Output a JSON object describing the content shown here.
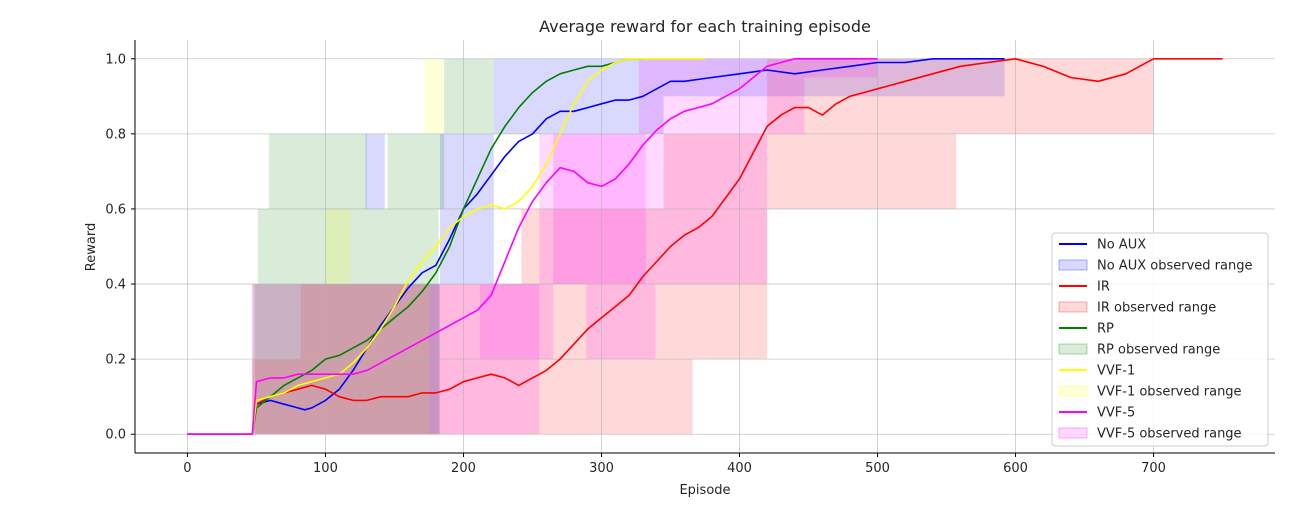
{
  "chart_data": {
    "type": "line",
    "title": "Average reward for each training episode",
    "xlabel": "Episode",
    "ylabel": "Reward",
    "xlim": [
      -38,
      788
    ],
    "ylim": [
      -0.05,
      1.05
    ],
    "xticks": [
      0,
      100,
      200,
      300,
      400,
      500,
      600,
      700
    ],
    "yticks": [
      0.0,
      0.2,
      0.4,
      0.6,
      0.8,
      1.0
    ],
    "xtick_labels": [
      "0",
      "100",
      "200",
      "300",
      "400",
      "500",
      "600",
      "700"
    ],
    "ytick_labels": [
      "0.0",
      "0.2",
      "0.4",
      "0.6",
      "0.8",
      "1.0"
    ],
    "grid": true,
    "legend_position": "lower-right",
    "series": [
      {
        "name": "No AUX",
        "range_name": "No AUX observed range",
        "color": "#0000ff",
        "fill": "#0000ff",
        "fill_opacity": 0.15,
        "x": [
          0,
          47,
          50,
          60,
          70,
          80,
          85,
          90,
          100,
          110,
          120,
          130,
          140,
          150,
          160,
          170,
          180,
          190,
          200,
          210,
          220,
          230,
          240,
          250,
          260,
          270,
          280,
          290,
          300,
          310,
          320,
          330,
          340,
          350,
          360,
          380,
          400,
          420,
          440,
          460,
          480,
          500,
          520,
          540,
          560,
          592
        ],
        "y": [
          0,
          0,
          0.08,
          0.09,
          0.08,
          0.07,
          0.065,
          0.07,
          0.09,
          0.12,
          0.17,
          0.23,
          0.29,
          0.34,
          0.39,
          0.43,
          0.45,
          0.52,
          0.6,
          0.64,
          0.69,
          0.74,
          0.78,
          0.8,
          0.84,
          0.86,
          0.86,
          0.87,
          0.88,
          0.89,
          0.89,
          0.9,
          0.92,
          0.94,
          0.94,
          0.95,
          0.96,
          0.97,
          0.96,
          0.97,
          0.98,
          0.99,
          0.99,
          1.0,
          1.0,
          1.0
        ],
        "bands": [
          {
            "x0": 47,
            "x1": 183,
            "lo": 0.0,
            "hi": 0.4
          },
          {
            "x0": 129,
            "x1": 143,
            "lo": 0.6,
            "hi": 0.8
          },
          {
            "x0": 183,
            "x1": 222,
            "lo": 0.4,
            "hi": 0.8
          },
          {
            "x0": 222,
            "x1": 345,
            "lo": 0.8,
            "hi": 1.0
          },
          {
            "x0": 345,
            "x1": 592,
            "lo": 0.9,
            "hi": 1.0
          }
        ]
      },
      {
        "name": "IR",
        "range_name": "IR observed range",
        "color": "#ff0000",
        "fill": "#ff0000",
        "fill_opacity": 0.15,
        "x": [
          0,
          47,
          50,
          60,
          70,
          80,
          90,
          100,
          110,
          120,
          130,
          140,
          150,
          160,
          170,
          180,
          190,
          200,
          210,
          220,
          230,
          240,
          250,
          260,
          270,
          280,
          290,
          300,
          310,
          320,
          330,
          340,
          350,
          360,
          370,
          380,
          390,
          400,
          410,
          420,
          430,
          440,
          450,
          460,
          470,
          480,
          490,
          500,
          520,
          540,
          560,
          580,
          600,
          620,
          640,
          660,
          680,
          700,
          750
        ],
        "y": [
          0,
          0,
          0.08,
          0.1,
          0.11,
          0.12,
          0.13,
          0.12,
          0.1,
          0.09,
          0.09,
          0.1,
          0.1,
          0.1,
          0.11,
          0.11,
          0.12,
          0.14,
          0.15,
          0.16,
          0.15,
          0.13,
          0.15,
          0.17,
          0.2,
          0.24,
          0.28,
          0.31,
          0.34,
          0.37,
          0.42,
          0.46,
          0.5,
          0.53,
          0.55,
          0.58,
          0.63,
          0.68,
          0.75,
          0.82,
          0.85,
          0.87,
          0.87,
          0.85,
          0.88,
          0.9,
          0.91,
          0.92,
          0.94,
          0.96,
          0.98,
          0.99,
          1.0,
          0.98,
          0.95,
          0.94,
          0.96,
          1.0,
          1.0
        ],
        "bands": [
          {
            "x0": 47,
            "x1": 366,
            "lo": 0.0,
            "hi": 0.2
          },
          {
            "x0": 82,
            "x1": 420,
            "lo": 0.2,
            "hi": 0.4
          },
          {
            "x0": 242,
            "x1": 420,
            "lo": 0.4,
            "hi": 0.6
          },
          {
            "x0": 345,
            "x1": 557,
            "lo": 0.6,
            "hi": 0.8
          },
          {
            "x0": 420,
            "x1": 700,
            "lo": 0.8,
            "hi": 1.0
          }
        ]
      },
      {
        "name": "RP",
        "range_name": "RP observed range",
        "color": "#008000",
        "fill": "#008000",
        "fill_opacity": 0.15,
        "x": [
          0,
          47,
          50,
          60,
          70,
          80,
          90,
          100,
          110,
          120,
          130,
          140,
          150,
          160,
          170,
          180,
          190,
          200,
          210,
          220,
          230,
          240,
          250,
          260,
          270,
          280,
          290,
          300,
          310,
          320,
          330
        ],
        "y": [
          0,
          0,
          0.07,
          0.1,
          0.13,
          0.15,
          0.17,
          0.2,
          0.21,
          0.23,
          0.25,
          0.28,
          0.31,
          0.34,
          0.38,
          0.43,
          0.5,
          0.6,
          0.68,
          0.76,
          0.82,
          0.87,
          0.91,
          0.94,
          0.96,
          0.97,
          0.98,
          0.98,
          0.99,
          1.0,
          1.0
        ],
        "bands": [
          {
            "x0": 49,
            "x1": 182,
            "lo": 0.0,
            "hi": 0.4
          },
          {
            "x0": 51,
            "x1": 182,
            "lo": 0.4,
            "hi": 0.6
          },
          {
            "x0": 59,
            "x1": 130,
            "lo": 0.6,
            "hi": 0.8
          },
          {
            "x0": 145,
            "x1": 186,
            "lo": 0.6,
            "hi": 0.8
          },
          {
            "x0": 186,
            "x1": 222,
            "lo": 0.8,
            "hi": 1.0
          }
        ]
      },
      {
        "name": "VVF-1",
        "range_name": "VVF-1 observed range",
        "color": "#ffff00",
        "fill": "#ffff00",
        "fill_opacity": 0.15,
        "x": [
          0,
          47,
          50,
          60,
          70,
          80,
          90,
          100,
          110,
          120,
          130,
          140,
          150,
          160,
          170,
          180,
          190,
          200,
          210,
          220,
          230,
          240,
          250,
          260,
          270,
          280,
          290,
          300,
          310,
          320,
          340,
          375
        ],
        "y": [
          0,
          0,
          0.09,
          0.1,
          0.11,
          0.13,
          0.14,
          0.15,
          0.16,
          0.19,
          0.23,
          0.28,
          0.34,
          0.41,
          0.46,
          0.5,
          0.55,
          0.58,
          0.6,
          0.61,
          0.6,
          0.62,
          0.66,
          0.72,
          0.8,
          0.88,
          0.94,
          0.97,
          0.99,
          1.0,
          1.0,
          1.0
        ],
        "bands": [
          {
            "x0": 47,
            "x1": 175,
            "lo": 0.0,
            "hi": 0.4
          },
          {
            "x0": 100,
            "x1": 118,
            "lo": 0.4,
            "hi": 0.6
          },
          {
            "x0": 172,
            "x1": 186,
            "lo": 0.8,
            "hi": 1.0
          }
        ]
      },
      {
        "name": "VVF-5",
        "range_name": "VVF-5 observed range",
        "color": "#ff00ff",
        "fill": "#ff00ff",
        "fill_opacity": 0.15,
        "x": [
          0,
          47,
          50,
          60,
          70,
          80,
          90,
          100,
          110,
          120,
          130,
          140,
          150,
          160,
          170,
          180,
          190,
          200,
          210,
          220,
          230,
          240,
          250,
          260,
          270,
          280,
          290,
          300,
          310,
          320,
          330,
          340,
          350,
          360,
          370,
          380,
          390,
          400,
          410,
          420,
          430,
          440,
          450,
          460,
          480,
          500
        ],
        "y": [
          0,
          0,
          0.14,
          0.15,
          0.15,
          0.16,
          0.16,
          0.16,
          0.16,
          0.16,
          0.17,
          0.19,
          0.21,
          0.23,
          0.25,
          0.27,
          0.29,
          0.31,
          0.33,
          0.37,
          0.46,
          0.55,
          0.62,
          0.67,
          0.71,
          0.7,
          0.67,
          0.66,
          0.68,
          0.72,
          0.77,
          0.81,
          0.84,
          0.86,
          0.87,
          0.88,
          0.9,
          0.92,
          0.95,
          0.98,
          0.99,
          1.0,
          1.0,
          1.0,
          1.0,
          1.0
        ],
        "bands": [
          {
            "x0": 47,
            "x1": 255,
            "lo": 0.0,
            "hi": 0.4
          },
          {
            "x0": 212,
            "x1": 265,
            "lo": 0.2,
            "hi": 0.4
          },
          {
            "x0": 289,
            "x1": 339,
            "lo": 0.2,
            "hi": 0.4
          },
          {
            "x0": 255,
            "x1": 332,
            "lo": 0.4,
            "hi": 0.8
          },
          {
            "x0": 265,
            "x1": 420,
            "lo": 0.4,
            "hi": 0.8
          },
          {
            "x0": 327,
            "x1": 447,
            "lo": 0.8,
            "hi": 1.0
          },
          {
            "x0": 447,
            "x1": 500,
            "lo": 0.95,
            "hi": 1.0
          }
        ]
      }
    ]
  }
}
